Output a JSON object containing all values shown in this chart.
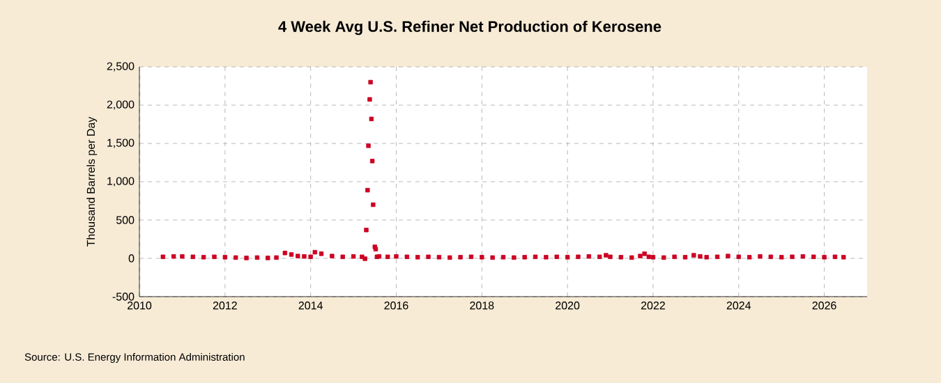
{
  "chart_data": {
    "type": "scatter",
    "title": "4 Week Avg U.S. Refiner Net Production of Kerosene",
    "ylabel": "Thousand Barrels per Day",
    "annotations": [
      "Source: U.S. Energy Information Administration"
    ],
    "x": [
      2010.55,
      2010.8,
      2011.0,
      2011.25,
      2011.5,
      2011.75,
      2012.0,
      2012.25,
      2012.5,
      2012.75,
      2013.0,
      2013.2,
      2013.4,
      2013.55,
      2013.7,
      2013.85,
      2014.0,
      2014.1,
      2014.25,
      2014.5,
      2014.75,
      2015.0,
      2015.2,
      2015.27,
      2015.3,
      2015.33,
      2015.35,
      2015.38,
      2015.4,
      2015.42,
      2015.44,
      2015.46,
      2015.5,
      2015.52,
      2015.55,
      2015.6,
      2015.8,
      2016.0,
      2016.25,
      2016.5,
      2016.75,
      2017.0,
      2017.25,
      2017.5,
      2017.75,
      2018.0,
      2018.25,
      2018.5,
      2018.75,
      2019.0,
      2019.25,
      2019.5,
      2019.75,
      2020.0,
      2020.25,
      2020.5,
      2020.75,
      2020.9,
      2021.0,
      2021.25,
      2021.5,
      2021.7,
      2021.8,
      2021.9,
      2022.0,
      2022.25,
      2022.5,
      2022.75,
      2022.95,
      2023.1,
      2023.25,
      2023.5,
      2023.75,
      2024.0,
      2024.25,
      2024.5,
      2024.75,
      2025.0,
      2025.25,
      2025.5,
      2025.75,
      2026.0,
      2026.25,
      2026.45
    ],
    "values": [
      20,
      25,
      25,
      20,
      15,
      20,
      15,
      10,
      5,
      10,
      5,
      10,
      70,
      50,
      30,
      25,
      20,
      80,
      60,
      30,
      20,
      25,
      20,
      -5,
      370,
      890,
      1470,
      2075,
      2300,
      1820,
      1270,
      700,
      150,
      120,
      20,
      25,
      20,
      25,
      20,
      15,
      20,
      15,
      10,
      15,
      20,
      15,
      10,
      15,
      10,
      15,
      20,
      15,
      20,
      15,
      20,
      25,
      20,
      40,
      20,
      15,
      10,
      30,
      60,
      20,
      15,
      10,
      20,
      15,
      40,
      25,
      15,
      20,
      30,
      20,
      15,
      25,
      20,
      15,
      20,
      25,
      20,
      15,
      20,
      15
    ],
    "color": "#cc0022",
    "marker": "square",
    "xlim": [
      2010,
      2027
    ],
    "ylim": [
      -500,
      2500
    ],
    "xticks": [
      2010,
      2012,
      2014,
      2016,
      2018,
      2020,
      2022,
      2024,
      2026
    ],
    "yticks": [
      {
        "value": -500,
        "label": "-500"
      },
      {
        "value": 0,
        "label": "0"
      },
      {
        "value": 500,
        "label": "500"
      },
      {
        "value": 1000,
        "label": "1,000"
      },
      {
        "value": 1500,
        "label": "1,500"
      },
      {
        "value": 2000,
        "label": "2,000"
      },
      {
        "value": 2500,
        "label": "2,500"
      }
    ],
    "grid": true
  }
}
